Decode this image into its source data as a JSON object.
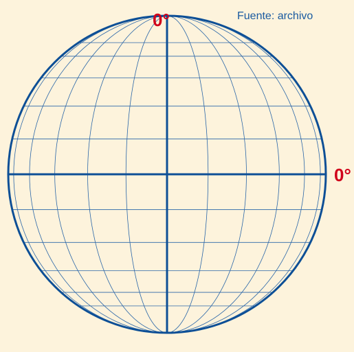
{
  "labels": {
    "top": "0°",
    "right": "0°"
  },
  "source": "Fuente: archivo"
}
